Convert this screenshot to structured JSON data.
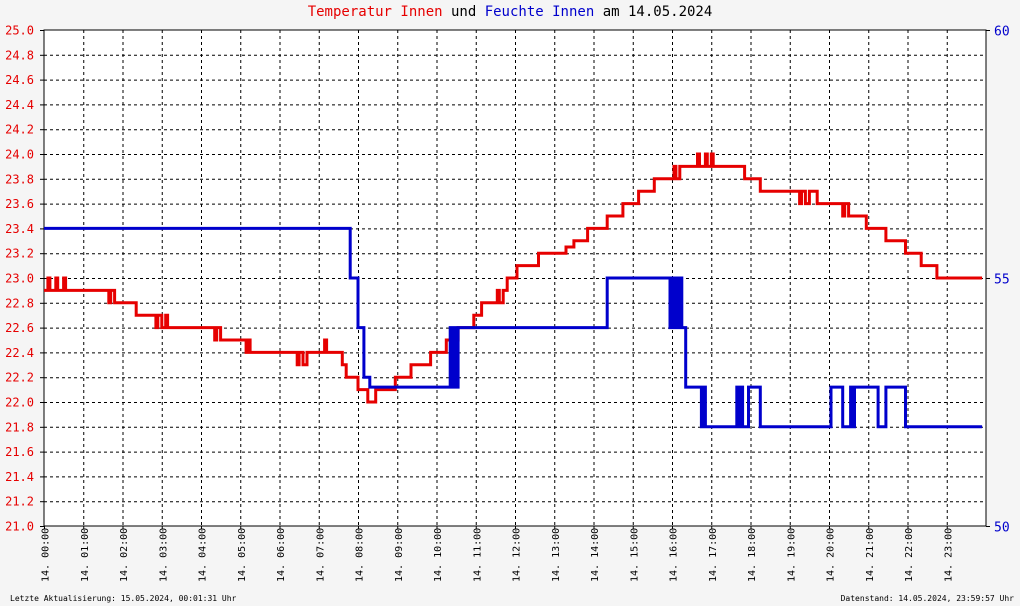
{
  "title": {
    "part1": "Temperatur Innen",
    "part2": " und ",
    "part3": "Feuchte Innen",
    "part4": " am 14.05.2024"
  },
  "footer": {
    "left": "Letzte Aktualisierung: 15.05.2024, 00:01:31 Uhr",
    "right": "Datenstand: 14.05.2024, 23:59:57 Uhr"
  },
  "colors": {
    "temperature": "#e60000",
    "humidity": "#0000cc",
    "grid": "#000000",
    "background": "#f5f5f5"
  },
  "chart_data": {
    "type": "line",
    "grid": true,
    "x": {
      "range": [
        0,
        24
      ],
      "tick_labels": [
        "14. 00:00",
        "14. 01:00",
        "14. 02:00",
        "14. 03:00",
        "14. 04:00",
        "14. 05:00",
        "14. 06:00",
        "14. 07:00",
        "14. 08:00",
        "14. 09:00",
        "14. 10:00",
        "14. 11:00",
        "14. 12:00",
        "14. 13:00",
        "14. 14:00",
        "14. 15:00",
        "14. 16:00",
        "14. 17:00",
        "14. 18:00",
        "14. 19:00",
        "14. 20:00",
        "14. 21:00",
        "14. 22:00",
        "14. 23:00"
      ]
    },
    "y_left": {
      "range": [
        21.0,
        25.0
      ],
      "ticks": [
        "21.0",
        "21.2",
        "21.4",
        "21.6",
        "21.8",
        "22.0",
        "22.2",
        "22.4",
        "22.6",
        "22.8",
        "23.0",
        "23.2",
        "23.4",
        "23.6",
        "23.8",
        "24.0",
        "24.2",
        "24.4",
        "24.6",
        "24.8",
        "25.0"
      ]
    },
    "y_right": {
      "range": [
        50,
        60
      ],
      "ticks": [
        "50",
        "55",
        "60"
      ]
    },
    "series": [
      {
        "name": "Temperatur Innen",
        "axis": "left",
        "points": [
          [
            0.0,
            22.9
          ],
          [
            0.1,
            23.0
          ],
          [
            0.15,
            22.9
          ],
          [
            0.3,
            23.0
          ],
          [
            0.35,
            22.9
          ],
          [
            0.5,
            23.0
          ],
          [
            0.55,
            22.9
          ],
          [
            1.6,
            22.9
          ],
          [
            1.65,
            22.8
          ],
          [
            1.7,
            22.9
          ],
          [
            1.8,
            22.8
          ],
          [
            2.3,
            22.8
          ],
          [
            2.35,
            22.7
          ],
          [
            2.8,
            22.7
          ],
          [
            2.85,
            22.6
          ],
          [
            2.9,
            22.7
          ],
          [
            3.0,
            22.6
          ],
          [
            3.1,
            22.7
          ],
          [
            3.15,
            22.6
          ],
          [
            4.3,
            22.6
          ],
          [
            4.35,
            22.5
          ],
          [
            4.4,
            22.6
          ],
          [
            4.5,
            22.5
          ],
          [
            5.1,
            22.5
          ],
          [
            5.15,
            22.4
          ],
          [
            5.2,
            22.5
          ],
          [
            5.25,
            22.4
          ],
          [
            6.4,
            22.4
          ],
          [
            6.45,
            22.3
          ],
          [
            6.5,
            22.4
          ],
          [
            6.6,
            22.3
          ],
          [
            6.7,
            22.4
          ],
          [
            7.1,
            22.4
          ],
          [
            7.15,
            22.5
          ],
          [
            7.2,
            22.4
          ],
          [
            7.55,
            22.4
          ],
          [
            7.6,
            22.3
          ],
          [
            7.7,
            22.2
          ],
          [
            7.9,
            22.2
          ],
          [
            8.0,
            22.1
          ],
          [
            8.2,
            22.1
          ],
          [
            8.25,
            22.0
          ],
          [
            8.4,
            22.0
          ],
          [
            8.45,
            22.1
          ],
          [
            8.9,
            22.1
          ],
          [
            8.95,
            22.2
          ],
          [
            9.3,
            22.2
          ],
          [
            9.35,
            22.3
          ],
          [
            9.8,
            22.3
          ],
          [
            9.85,
            22.4
          ],
          [
            10.2,
            22.4
          ],
          [
            10.25,
            22.5
          ],
          [
            10.5,
            22.5
          ],
          [
            10.55,
            22.6
          ],
          [
            10.9,
            22.6
          ],
          [
            10.95,
            22.7
          ],
          [
            11.1,
            22.7
          ],
          [
            11.15,
            22.8
          ],
          [
            11.5,
            22.8
          ],
          [
            11.55,
            22.9
          ],
          [
            11.6,
            22.8
          ],
          [
            11.7,
            22.9
          ],
          [
            11.8,
            23.0
          ],
          [
            12.0,
            23.0
          ],
          [
            12.05,
            23.1
          ],
          [
            12.55,
            23.1
          ],
          [
            12.6,
            23.2
          ],
          [
            13.2,
            23.2
          ],
          [
            13.3,
            23.25
          ],
          [
            13.5,
            23.3
          ],
          [
            13.8,
            23.3
          ],
          [
            13.85,
            23.4
          ],
          [
            14.3,
            23.4
          ],
          [
            14.35,
            23.5
          ],
          [
            14.7,
            23.5
          ],
          [
            14.75,
            23.6
          ],
          [
            15.1,
            23.6
          ],
          [
            15.15,
            23.7
          ],
          [
            15.5,
            23.7
          ],
          [
            15.55,
            23.8
          ],
          [
            16.0,
            23.8
          ],
          [
            16.05,
            23.9
          ],
          [
            16.1,
            23.8
          ],
          [
            16.2,
            23.9
          ],
          [
            16.6,
            23.9
          ],
          [
            16.65,
            24.0
          ],
          [
            16.7,
            23.9
          ],
          [
            16.85,
            24.0
          ],
          [
            16.9,
            23.9
          ],
          [
            17.0,
            24.0
          ],
          [
            17.05,
            23.9
          ],
          [
            17.8,
            23.9
          ],
          [
            17.85,
            23.8
          ],
          [
            18.2,
            23.8
          ],
          [
            18.25,
            23.7
          ],
          [
            19.2,
            23.7
          ],
          [
            19.25,
            23.6
          ],
          [
            19.3,
            23.7
          ],
          [
            19.4,
            23.6
          ],
          [
            19.5,
            23.7
          ],
          [
            19.7,
            23.6
          ],
          [
            19.9,
            23.6
          ],
          [
            19.95,
            23.6
          ],
          [
            20.3,
            23.6
          ],
          [
            20.35,
            23.5
          ],
          [
            20.4,
            23.6
          ],
          [
            20.5,
            23.5
          ],
          [
            20.9,
            23.5
          ],
          [
            20.95,
            23.4
          ],
          [
            21.4,
            23.4
          ],
          [
            21.45,
            23.3
          ],
          [
            21.9,
            23.3
          ],
          [
            21.95,
            23.2
          ],
          [
            22.3,
            23.2
          ],
          [
            22.35,
            23.1
          ],
          [
            22.7,
            23.1
          ],
          [
            22.75,
            23.0
          ],
          [
            23.9,
            23.0
          ]
        ]
      },
      {
        "name": "Feuchte Innen",
        "axis": "right",
        "points": [
          [
            0.0,
            56.0
          ],
          [
            7.75,
            56.0
          ],
          [
            7.8,
            55.0
          ],
          [
            7.95,
            55.0
          ],
          [
            8.0,
            54.0
          ],
          [
            8.1,
            54.0
          ],
          [
            8.15,
            53.0
          ],
          [
            8.3,
            52.8
          ],
          [
            10.3,
            52.8
          ],
          [
            10.35,
            54.0
          ],
          [
            10.4,
            52.8
          ],
          [
            10.45,
            54.0
          ],
          [
            10.5,
            52.8
          ],
          [
            10.55,
            54.0
          ],
          [
            14.3,
            54.0
          ],
          [
            14.35,
            55.0
          ],
          [
            15.9,
            55.0
          ],
          [
            15.95,
            54.0
          ],
          [
            16.0,
            55.0
          ],
          [
            16.05,
            54.0
          ],
          [
            16.1,
            55.0
          ],
          [
            16.15,
            54.0
          ],
          [
            16.2,
            55.0
          ],
          [
            16.25,
            54.0
          ],
          [
            16.35,
            52.8
          ],
          [
            16.7,
            52.8
          ],
          [
            16.75,
            52.0
          ],
          [
            16.8,
            52.8
          ],
          [
            16.85,
            52.0
          ],
          [
            17.6,
            52.0
          ],
          [
            17.65,
            52.8
          ],
          [
            17.7,
            52.0
          ],
          [
            17.75,
            52.8
          ],
          [
            17.8,
            52.0
          ],
          [
            17.9,
            52.0
          ],
          [
            17.95,
            52.8
          ],
          [
            18.2,
            52.8
          ],
          [
            18.25,
            52.0
          ],
          [
            20.0,
            52.0
          ],
          [
            20.05,
            52.8
          ],
          [
            20.3,
            52.8
          ],
          [
            20.35,
            52.0
          ],
          [
            20.5,
            52.0
          ],
          [
            20.55,
            52.8
          ],
          [
            20.6,
            52.0
          ],
          [
            20.65,
            52.8
          ],
          [
            21.2,
            52.8
          ],
          [
            21.25,
            52.0
          ],
          [
            21.4,
            52.0
          ],
          [
            21.45,
            52.8
          ],
          [
            21.9,
            52.8
          ],
          [
            21.95,
            52.0
          ],
          [
            23.9,
            52.0
          ]
        ]
      }
    ]
  }
}
